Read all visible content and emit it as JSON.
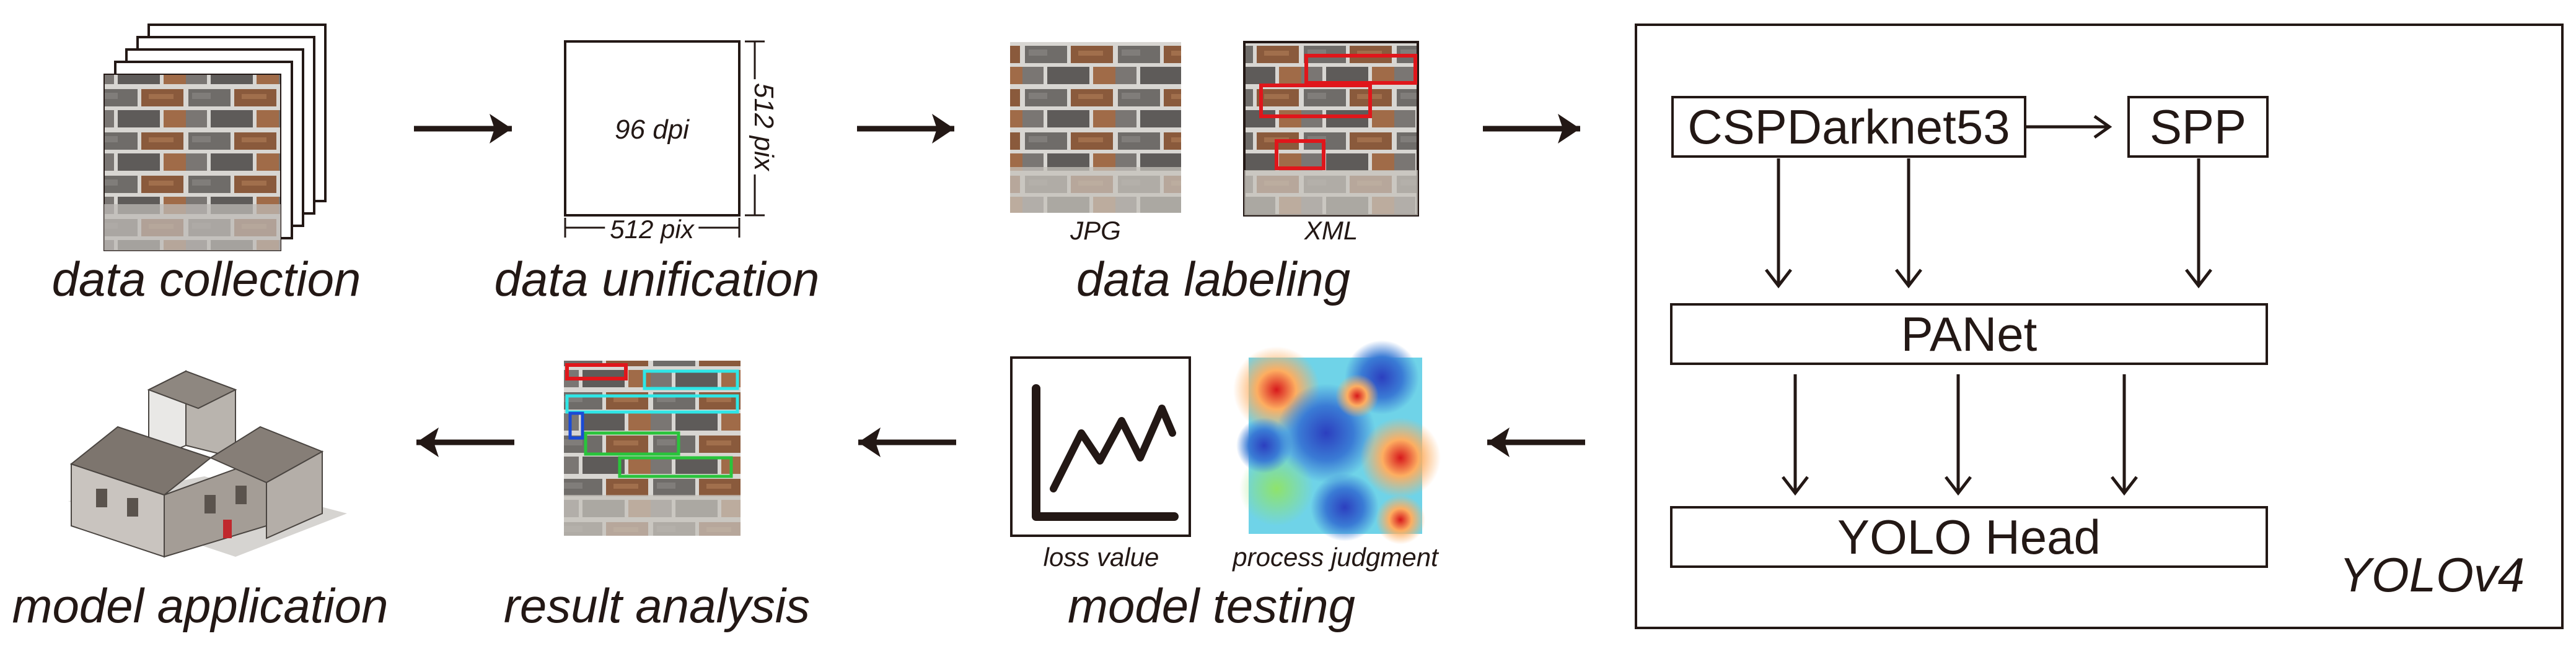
{
  "stages": {
    "collection": "data collection",
    "unification": "data unification",
    "labeling": "data labeling",
    "testing": "model testing",
    "analysis": "result analysis",
    "application": "model application"
  },
  "unification": {
    "dpi": "96 dpi",
    "width": "512 pix",
    "height": "512 pix"
  },
  "labeling": {
    "jpg": "JPG",
    "xml": "XML"
  },
  "testing": {
    "loss": "loss value",
    "judgment": "process judgment"
  },
  "yolo": {
    "title": "YOLOv4",
    "backbone": "CSPDarknet53",
    "spp": "SPP",
    "neck": "PANet",
    "head": "YOLO Head"
  },
  "colors": {
    "ink": "#231815",
    "label_box": "#e0161b",
    "detect_cyan": "#2fe6e6",
    "detect_green": "#29c43b"
  }
}
